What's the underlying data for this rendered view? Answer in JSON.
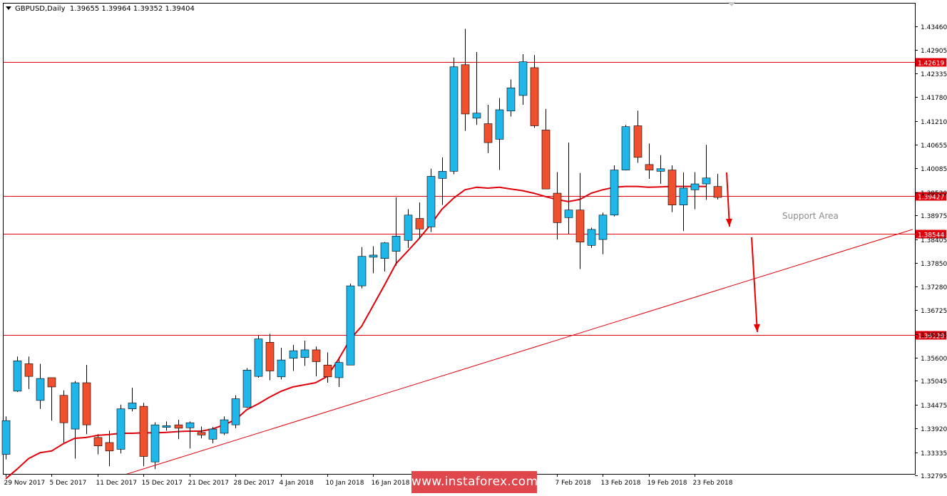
{
  "header": {
    "symbol": "GBPUSD,Daily",
    "ohlc": "1.39655 1.39964 1.39352 1.39404"
  },
  "annotations": {
    "support_label": "Support Area",
    "watermark": "www.instaforex.com"
  },
  "colors": {
    "bull": "#1fb7ea",
    "bear": "#f0502d",
    "wick": "#000000",
    "level": "#e0000b",
    "ma": "#e0000b",
    "arrow": "#e80000",
    "grid_frame": "#000000",
    "level_label_bg": "#e0000b",
    "level_label_text": "#ffffff"
  },
  "chart_data": {
    "type": "candlestick",
    "title": "GBPUSD,Daily",
    "y_axis": {
      "position": "right",
      "range": [
        1.3266,
        1.4397
      ],
      "ticks": [
        "1.43460",
        "1.42905",
        "1.42335",
        "1.41780",
        "1.41210",
        "1.40655",
        "1.40085",
        "1.39520",
        "1.38975",
        "1.38405",
        "1.37850",
        "1.37280",
        "1.36725",
        "1.36155",
        "1.35600",
        "1.35045",
        "1.34475",
        "1.33920",
        "1.33335",
        "1.32795"
      ]
    },
    "x_axis": {
      "labels": [
        "29 Nov 2017",
        "5 Dec 2017",
        "11 Dec 2017",
        "15 Dec 2017",
        "21 Dec 2017",
        "28 Dec 2017",
        "4 Jan 2018",
        "10 Jan 2018",
        "16 Jan 2018",
        "7 Feb 2018",
        "13 Feb 2018",
        "19 Feb 2018",
        "23 Feb 2018"
      ],
      "label_bar_index": [
        0,
        4,
        8,
        12,
        16,
        20,
        24,
        28,
        32,
        48,
        52,
        56,
        60
      ]
    },
    "horizontal_levels": [
      "1.42619",
      "1.39427",
      "1.38544",
      "1.36128"
    ],
    "support_area": [
      1.38544,
      1.39427
    ],
    "trendline": {
      "from": [
        9,
        1.327
      ],
      "to": [
        79,
        1.3864
      ]
    },
    "moving_average": [
      1.3272,
      1.3295,
      1.332,
      1.3334,
      1.3338,
      1.3355,
      1.3368,
      1.337,
      1.3375,
      1.3377,
      1.338,
      1.338,
      1.3381,
      1.3381,
      1.3382,
      1.3384,
      1.3385,
      1.3385,
      1.339,
      1.34,
      1.3412,
      1.3436,
      1.345,
      1.3466,
      1.348,
      1.349,
      1.3495,
      1.35,
      1.3515,
      1.3556,
      1.3603,
      1.3634,
      1.3683,
      1.3732,
      1.3783,
      1.3812,
      1.3842,
      1.3875,
      1.3912,
      1.3938,
      1.3958,
      1.3964,
      1.3962,
      1.3964,
      1.396,
      1.3956,
      1.395,
      1.3942,
      1.3935,
      1.393,
      1.3935,
      1.395,
      1.3958,
      1.3964,
      1.3966,
      1.3966,
      1.3964,
      1.3965,
      1.3966,
      1.3966,
      1.3966,
      1.3966
    ],
    "candles": [
      {
        "o": 1.333,
        "h": 1.342,
        "l": 1.3318,
        "c": 1.341
      },
      {
        "o": 1.348,
        "h": 1.3562,
        "l": 1.3478,
        "c": 1.3552
      },
      {
        "o": 1.3545,
        "h": 1.3562,
        "l": 1.3485,
        "c": 1.3515
      },
      {
        "o": 1.3458,
        "h": 1.3545,
        "l": 1.3438,
        "c": 1.351
      },
      {
        "o": 1.3512,
        "h": 1.3512,
        "l": 1.341,
        "c": 1.349
      },
      {
        "o": 1.347,
        "h": 1.3482,
        "l": 1.3358,
        "c": 1.3405
      },
      {
        "o": 1.339,
        "h": 1.3504,
        "l": 1.332,
        "c": 1.35
      },
      {
        "o": 1.35,
        "h": 1.3542,
        "l": 1.3378,
        "c": 1.34
      },
      {
        "o": 1.337,
        "h": 1.3378,
        "l": 1.333,
        "c": 1.335
      },
      {
        "o": 1.3358,
        "h": 1.3386,
        "l": 1.3302,
        "c": 1.3338
      },
      {
        "o": 1.3342,
        "h": 1.3448,
        "l": 1.3332,
        "c": 1.3438
      },
      {
        "o": 1.3438,
        "h": 1.3488,
        "l": 1.3432,
        "c": 1.3452
      },
      {
        "o": 1.3444,
        "h": 1.3452,
        "l": 1.3302,
        "c": 1.3325
      },
      {
        "o": 1.3312,
        "h": 1.3406,
        "l": 1.3295,
        "c": 1.34
      },
      {
        "o": 1.3394,
        "h": 1.3408,
        "l": 1.3386,
        "c": 1.3398
      },
      {
        "o": 1.34,
        "h": 1.3412,
        "l": 1.3366,
        "c": 1.3392
      },
      {
        "o": 1.3393,
        "h": 1.3408,
        "l": 1.3344,
        "c": 1.3405
      },
      {
        "o": 1.3382,
        "h": 1.3396,
        "l": 1.3368,
        "c": 1.3376
      },
      {
        "o": 1.3366,
        "h": 1.3395,
        "l": 1.3356,
        "c": 1.339
      },
      {
        "o": 1.338,
        "h": 1.342,
        "l": 1.3376,
        "c": 1.3412
      },
      {
        "o": 1.34,
        "h": 1.347,
        "l": 1.3392,
        "c": 1.3462
      },
      {
        "o": 1.3442,
        "h": 1.3535,
        "l": 1.344,
        "c": 1.353
      },
      {
        "o": 1.3515,
        "h": 1.3612,
        "l": 1.3512,
        "c": 1.3604
      },
      {
        "o": 1.3596,
        "h": 1.3616,
        "l": 1.3506,
        "c": 1.3528
      },
      {
        "o": 1.3514,
        "h": 1.3583,
        "l": 1.3508,
        "c": 1.3554
      },
      {
        "o": 1.3558,
        "h": 1.359,
        "l": 1.3528,
        "c": 1.3576
      },
      {
        "o": 1.356,
        "h": 1.36,
        "l": 1.354,
        "c": 1.3578
      },
      {
        "o": 1.3578,
        "h": 1.3586,
        "l": 1.3515,
        "c": 1.355
      },
      {
        "o": 1.3542,
        "h": 1.3572,
        "l": 1.35,
        "c": 1.3514
      },
      {
        "o": 1.3512,
        "h": 1.356,
        "l": 1.349,
        "c": 1.3548
      },
      {
        "o": 1.3542,
        "h": 1.3735,
        "l": 1.3542,
        "c": 1.373
      },
      {
        "o": 1.373,
        "h": 1.3822,
        "l": 1.3724,
        "c": 1.38
      },
      {
        "o": 1.3798,
        "h": 1.3824,
        "l": 1.376,
        "c": 1.3803
      },
      {
        "o": 1.3795,
        "h": 1.3834,
        "l": 1.3764,
        "c": 1.3832
      },
      {
        "o": 1.3812,
        "h": 1.394,
        "l": 1.3778,
        "c": 1.3848
      },
      {
        "o": 1.3838,
        "h": 1.3912,
        "l": 1.382,
        "c": 1.3898
      },
      {
        "o": 1.389,
        "h": 1.3928,
        "l": 1.3842,
        "c": 1.3865
      },
      {
        "o": 1.387,
        "h": 1.4008,
        "l": 1.3858,
        "c": 1.399
      },
      {
        "o": 1.3985,
        "h": 1.4035,
        "l": 1.3922,
        "c": 1.4002
      },
      {
        "o": 1.4002,
        "h": 1.4272,
        "l": 1.3995,
        "c": 1.425
      },
      {
        "o": 1.4255,
        "h": 1.434,
        "l": 1.4098,
        "c": 1.4138
      },
      {
        "o": 1.4128,
        "h": 1.4285,
        "l": 1.4112,
        "c": 1.414
      },
      {
        "o": 1.4115,
        "h": 1.416,
        "l": 1.4045,
        "c": 1.407
      },
      {
        "o": 1.4078,
        "h": 1.4176,
        "l": 1.4005,
        "c": 1.4148
      },
      {
        "o": 1.4145,
        "h": 1.422,
        "l": 1.4132,
        "c": 1.42
      },
      {
        "o": 1.4182,
        "h": 1.428,
        "l": 1.416,
        "c": 1.4262
      },
      {
        "o": 1.4248,
        "h": 1.4278,
        "l": 1.4105,
        "c": 1.411
      },
      {
        "o": 1.41,
        "h": 1.415,
        "l": 1.3962,
        "c": 1.396
      },
      {
        "o": 1.395,
        "h": 1.4,
        "l": 1.384,
        "c": 1.388
      },
      {
        "o": 1.3892,
        "h": 1.407,
        "l": 1.3852,
        "c": 1.391
      },
      {
        "o": 1.391,
        "h": 1.3998,
        "l": 1.377,
        "c": 1.3834
      },
      {
        "o": 1.3826,
        "h": 1.3868,
        "l": 1.382,
        "c": 1.3864
      },
      {
        "o": 1.384,
        "h": 1.3904,
        "l": 1.3805,
        "c": 1.3898
      },
      {
        "o": 1.3898,
        "h": 1.4016,
        "l": 1.3895,
        "c": 1.4005
      },
      {
        "o": 1.4005,
        "h": 1.4112,
        "l": 1.4004,
        "c": 1.4108
      },
      {
        "o": 1.411,
        "h": 1.4146,
        "l": 1.4022,
        "c": 1.4035
      },
      {
        "o": 1.4018,
        "h": 1.4068,
        "l": 1.3984,
        "c": 1.4005
      },
      {
        "o": 1.4002,
        "h": 1.404,
        "l": 1.3972,
        "c": 1.4008
      },
      {
        "o": 1.4005,
        "h": 1.4016,
        "l": 1.3905,
        "c": 1.3922
      },
      {
        "o": 1.3922,
        "h": 1.3999,
        "l": 1.386,
        "c": 1.3962
      },
      {
        "o": 1.3958,
        "h": 1.4,
        "l": 1.3912,
        "c": 1.3972
      },
      {
        "o": 1.3972,
        "h": 1.4065,
        "l": 1.3934,
        "c": 1.3986
      },
      {
        "o": 1.3966,
        "h": 1.3996,
        "l": 1.3935,
        "c": 1.394
      }
    ]
  }
}
